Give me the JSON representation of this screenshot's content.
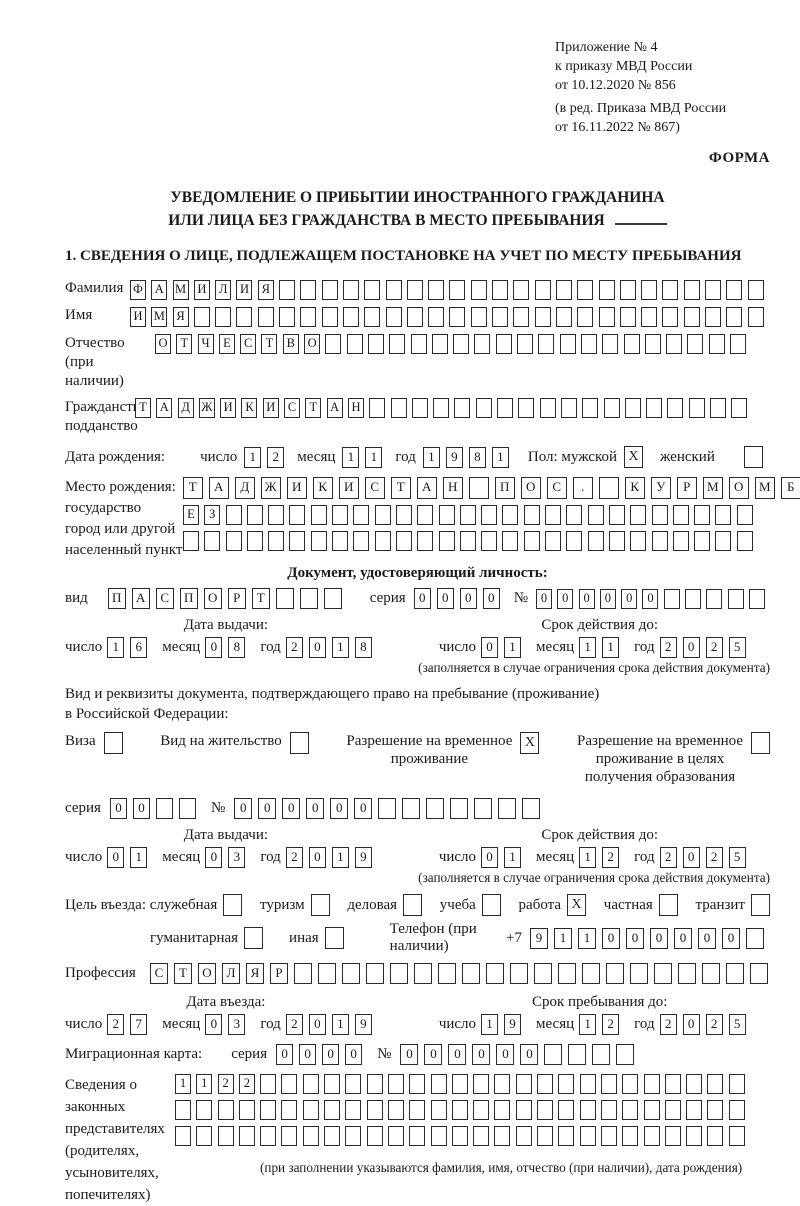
{
  "labels": {
    "day": "число",
    "month": "месяц",
    "year": "год",
    "series": "серия",
    "number": "№"
  },
  "header": {
    "appendix_lines": [
      "Приложение № 4",
      "к приказу МВД России",
      "от 10.12.2020 № 856"
    ],
    "edition_lines": [
      "(в ред. Приказа МВД России",
      "от 16.11.2022 № 867)"
    ],
    "forma": "ФОРМА"
  },
  "title": {
    "line1": "УВЕДОМЛЕНИЕ О ПРИБЫТИИ ИНОСТРАННОГО ГРАЖДАНИНА",
    "line2": "ИЛИ ЛИЦА БЕЗ ГРАЖДАНСТВА В МЕСТО ПРЕБЫВАНИЯ"
  },
  "section1_heading": "1. СВЕДЕНИЯ О ЛИЦЕ, ПОДЛЕЖАЩЕМ ПОСТАНОВКЕ НА УЧЕТ ПО МЕСТУ ПРЕБЫВАНИЯ",
  "person": {
    "surname_label": "Фамилия",
    "surname": "ФАМИЛИЯ",
    "name_label": "Имя",
    "name": "ИМЯ",
    "patronymic_label1": "Отчество",
    "patronymic_label2": "(при наличии)",
    "patronymic": "ОТЧЕСТВО",
    "citizenship_label1": "Гражданство,",
    "citizenship_label2": "подданство",
    "citizenship": "ТАДЖИКИСТАН",
    "birth_date_label": "Дата рождения:",
    "birth_day": "12",
    "birth_month": "11",
    "birth_year": "1981",
    "sex_male_label": "Пол: мужской",
    "sex_male": "X",
    "sex_female_label": "женский",
    "sex_female": "",
    "birth_place_labels": [
      "Место рождения:",
      "государство",
      "город или другой",
      "населенный пункт"
    ],
    "birth_place_row1": "ТАДЖИКИСТАН ПОС. КУРМОМБ",
    "birth_place_row2": "ЕЗ",
    "birth_place_row3": ""
  },
  "identity_doc": {
    "heading": "Документ, удостоверяющий личность:",
    "type_label": "вид",
    "type": "ПАСПОРТ",
    "series": "0000",
    "number": "000000",
    "issue_heading": "Дата выдачи:",
    "issue_day": "16",
    "issue_month": "08",
    "issue_year": "2018",
    "expiry_heading": "Срок действия до:",
    "expiry_day": "01",
    "expiry_month": "11",
    "expiry_year": "2025",
    "note": "(заполняется в случае ограничения срока действия документа)"
  },
  "residence_doc": {
    "intro_line1": "Вид и реквизиты документа, подтверждающего право на пребывание (проживание)",
    "intro_line2": "в Российской Федерации:",
    "visa_label": "Виза",
    "visa": "",
    "permit_label": "Вид на жительство",
    "permit": "",
    "temp_line1": "Разрешение на временное",
    "temp_line2": "проживание",
    "temp": "X",
    "edu_line1": "Разрешение на временное",
    "edu_line2": "проживание в целях",
    "edu_line3": "получения образования",
    "edu": "",
    "series": "00",
    "number": "000000",
    "issue_heading": "Дата выдачи:",
    "issue_day": "01",
    "issue_month": "03",
    "issue_year": "2019",
    "expiry_heading": "Срок действия до:",
    "expiry_day": "01",
    "expiry_month": "12",
    "expiry_year": "2025",
    "note": "(заполняется в случае ограничения срока действия документа)"
  },
  "purpose": {
    "prefix": "Цель въезда:",
    "official_label": "служебная",
    "official": "",
    "tourism_label": "туризм",
    "tourism": "",
    "business_label": "деловая",
    "business": "",
    "study_label": "учеба",
    "study": "",
    "work_label": "работа",
    "work": "X",
    "private_label": "частная",
    "private": "",
    "transit_label": "транзит",
    "transit": "",
    "humanitarian_label": "гуманитарная",
    "humanitarian": "",
    "other_label": "иная",
    "other": ""
  },
  "phone": {
    "label": "Телефон (при наличии)",
    "prefix": "+7",
    "value": "911000000"
  },
  "profession_label": "Профессия",
  "profession": "СТОЛЯР",
  "entry": {
    "heading": "Дата въезда:",
    "day": "27",
    "month": "03",
    "year": "2019"
  },
  "stay": {
    "heading": "Срок пребывания до:",
    "day": "19",
    "month": "12",
    "year": "2025"
  },
  "migration_card": {
    "label": "Миграционная карта:",
    "series": "0000",
    "number": "000000"
  },
  "representatives": {
    "label_lines": [
      "Сведения о",
      "законных",
      "представителях",
      "(родителях,",
      "усыновителях,",
      "попечителях)"
    ],
    "row1": "1122",
    "row2": "",
    "row3": "",
    "note": "(при заполнении указываются фамилия, имя, отчество (при наличии), дата рождения)"
  }
}
